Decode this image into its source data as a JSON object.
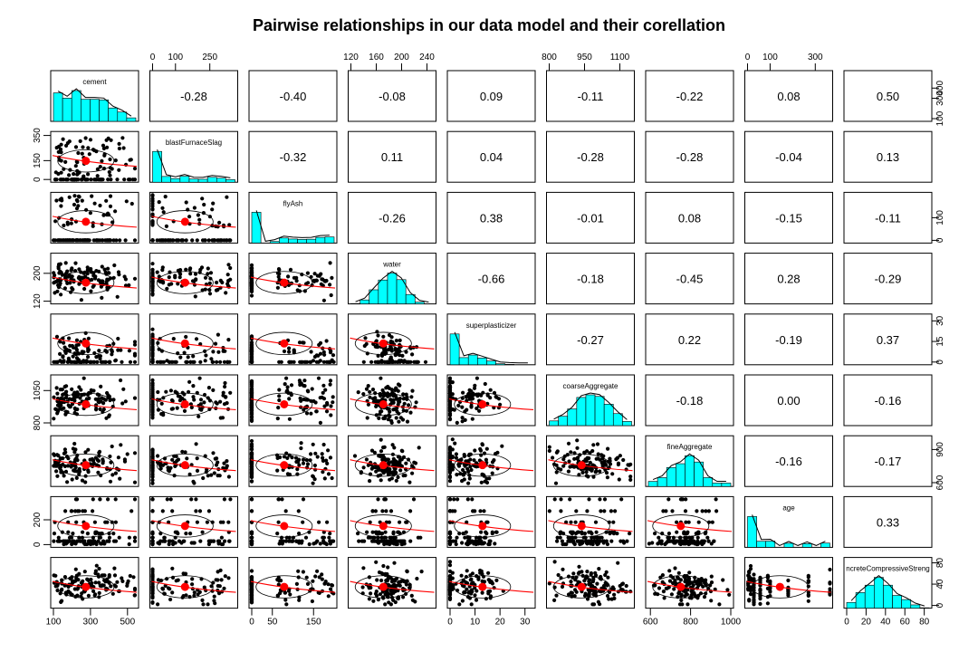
{
  "chart_data": {
    "type": "scatter",
    "title": "Pairwise relationships in our data model and their corellation",
    "variables": [
      "cement",
      "blastFurnaceSlag",
      "flyAsh",
      "water",
      "superplasticizer",
      "coarseAggregate",
      "fineAggregate",
      "age",
      "concreteCompressiveStrength"
    ],
    "variable_labels_shown": [
      "cement",
      "blastFurnaceSlag",
      "flyAsh",
      "water",
      "superplasticizer",
      "coarseAggregate",
      "fineAggregate",
      "age",
      "ncreteCompressiveStreng"
    ],
    "ranges": [
      [
        100,
        545
      ],
      [
        0,
        360
      ],
      [
        0,
        200
      ],
      [
        120,
        250
      ],
      [
        0,
        33
      ],
      [
        800,
        1150
      ],
      [
        590,
        1000
      ],
      [
        0,
        365
      ],
      [
        0,
        85
      ]
    ],
    "correlations": [
      {
        "row": "cement",
        "col": "blastFurnaceSlag",
        "value": "-0.28"
      },
      {
        "row": "cement",
        "col": "flyAsh",
        "value": "-0.40"
      },
      {
        "row": "cement",
        "col": "water",
        "value": "-0.08"
      },
      {
        "row": "cement",
        "col": "superplasticizer",
        "value": "0.09"
      },
      {
        "row": "cement",
        "col": "coarseAggregate",
        "value": "-0.11"
      },
      {
        "row": "cement",
        "col": "fineAggregate",
        "value": "-0.22"
      },
      {
        "row": "cement",
        "col": "age",
        "value": "0.08"
      },
      {
        "row": "cement",
        "col": "concreteCompressiveStrength",
        "value": "0.50"
      },
      {
        "row": "blastFurnaceSlag",
        "col": "flyAsh",
        "value": "-0.32"
      },
      {
        "row": "blastFurnaceSlag",
        "col": "water",
        "value": "0.11"
      },
      {
        "row": "blastFurnaceSlag",
        "col": "superplasticizer",
        "value": "0.04"
      },
      {
        "row": "blastFurnaceSlag",
        "col": "coarseAggregate",
        "value": "-0.28"
      },
      {
        "row": "blastFurnaceSlag",
        "col": "fineAggregate",
        "value": "-0.28"
      },
      {
        "row": "blastFurnaceSlag",
        "col": "age",
        "value": "-0.04"
      },
      {
        "row": "blastFurnaceSlag",
        "col": "concreteCompressiveStrength",
        "value": "0.13"
      },
      {
        "row": "flyAsh",
        "col": "water",
        "value": "-0.26"
      },
      {
        "row": "flyAsh",
        "col": "superplasticizer",
        "value": "0.38"
      },
      {
        "row": "flyAsh",
        "col": "coarseAggregate",
        "value": "-0.01"
      },
      {
        "row": "flyAsh",
        "col": "fineAggregate",
        "value": "0.08"
      },
      {
        "row": "flyAsh",
        "col": "age",
        "value": "-0.15"
      },
      {
        "row": "flyAsh",
        "col": "concreteCompressiveStrength",
        "value": "-0.11"
      },
      {
        "row": "water",
        "col": "superplasticizer",
        "value": "-0.66"
      },
      {
        "row": "water",
        "col": "coarseAggregate",
        "value": "-0.18"
      },
      {
        "row": "water",
        "col": "fineAggregate",
        "value": "-0.45"
      },
      {
        "row": "water",
        "col": "age",
        "value": "0.28"
      },
      {
        "row": "water",
        "col": "concreteCompressiveStrength",
        "value": "-0.29"
      },
      {
        "row": "superplasticizer",
        "col": "coarseAggregate",
        "value": "-0.27"
      },
      {
        "row": "superplasticizer",
        "col": "fineAggregate",
        "value": "0.22"
      },
      {
        "row": "superplasticizer",
        "col": "age",
        "value": "-0.19"
      },
      {
        "row": "superplasticizer",
        "col": "concreteCompressiveStrength",
        "value": "0.37"
      },
      {
        "row": "coarseAggregate",
        "col": "fineAggregate",
        "value": "-0.18"
      },
      {
        "row": "coarseAggregate",
        "col": "age",
        "value": "0.00"
      },
      {
        "row": "coarseAggregate",
        "col": "concreteCompressiveStrength",
        "value": "-0.16"
      },
      {
        "row": "fineAggregate",
        "col": "age",
        "value": "-0.16"
      },
      {
        "row": "fineAggregate",
        "col": "concreteCompressiveStrength",
        "value": "-0.17"
      },
      {
        "row": "age",
        "col": "concreteCompressiveStrength",
        "value": "0.33"
      }
    ],
    "axes": {
      "top": [
        {
          "col": 1,
          "ticks": [
            "0",
            "100",
            "250"
          ],
          "values": [
            0,
            100,
            250
          ]
        },
        {
          "col": 3,
          "ticks": [
            "120",
            "160",
            "200",
            "240"
          ],
          "values": [
            120,
            160,
            200,
            240
          ]
        },
        {
          "col": 5,
          "ticks": [
            "800",
            "950",
            "1100"
          ],
          "values": [
            800,
            950,
            1100
          ]
        },
        {
          "col": 7,
          "ticks": [
            "0",
            "100",
            "300"
          ],
          "values": [
            0,
            100,
            300
          ]
        }
      ],
      "bottom": [
        {
          "col": 0,
          "ticks": [
            "100",
            "300",
            "500"
          ],
          "values": [
            100,
            300,
            500
          ]
        },
        {
          "col": 2,
          "ticks": [
            "0",
            "50",
            "150"
          ],
          "values": [
            0,
            50,
            150
          ]
        },
        {
          "col": 4,
          "ticks": [
            "0",
            "10",
            "20",
            "30"
          ],
          "values": [
            0,
            10,
            20,
            30
          ]
        },
        {
          "col": 6,
          "ticks": [
            "600",
            "800",
            "1000"
          ],
          "values": [
            600,
            800,
            1000
          ]
        },
        {
          "col": 8,
          "ticks": [
            "0",
            "20",
            "40",
            "60",
            "80"
          ],
          "values": [
            0,
            20,
            40,
            60,
            80
          ]
        }
      ],
      "left": [
        {
          "row": 1,
          "ticks": [
            "0",
            "150",
            "350"
          ],
          "values": [
            0,
            150,
            350
          ]
        },
        {
          "row": 3,
          "ticks": [
            "120",
            "200"
          ],
          "values": [
            120,
            200
          ]
        },
        {
          "row": 5,
          "ticks": [
            "800",
            "1050"
          ],
          "values": [
            800,
            1050
          ]
        },
        {
          "row": 7,
          "ticks": [
            "0",
            "200"
          ],
          "values": [
            0,
            200
          ]
        }
      ],
      "right": [
        {
          "row": 0,
          "ticks": [
            "100",
            "300",
            "400"
          ],
          "values": [
            100,
            300,
            400
          ]
        },
        {
          "row": 2,
          "ticks": [
            "0",
            "100"
          ],
          "values": [
            0,
            100
          ]
        },
        {
          "row": 4,
          "ticks": [
            "0",
            "15",
            "30"
          ],
          "values": [
            0,
            15,
            30
          ]
        },
        {
          "row": 6,
          "ticks": [
            "600",
            "900"
          ],
          "values": [
            600,
            900
          ]
        },
        {
          "row": 8,
          "ticks": [
            "0",
            "40",
            "80"
          ],
          "values": [
            0,
            40,
            80
          ]
        }
      ]
    },
    "colors": {
      "histogram": "#00FFFF",
      "points": "#000000",
      "smooth": "#FF0000",
      "center": "#FF0000"
    }
  }
}
